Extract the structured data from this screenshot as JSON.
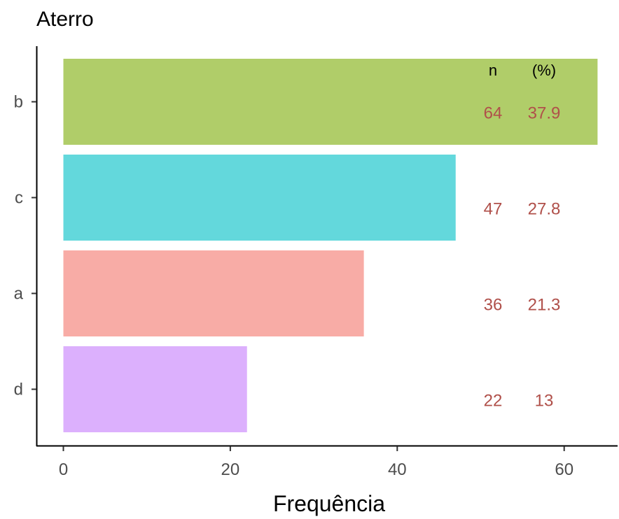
{
  "chart_data": {
    "type": "bar",
    "orientation": "horizontal",
    "title": "Aterro",
    "xlabel": "Frequência",
    "ylabel": "",
    "xlim": [
      0,
      66
    ],
    "x_ticks": [
      0,
      20,
      40,
      60
    ],
    "x_tick_labels": [
      "0",
      "20",
      "40",
      "60"
    ],
    "categories": [
      "b",
      "c",
      "a",
      "d"
    ],
    "values": [
      64,
      47,
      36,
      22
    ],
    "percents": [
      "37.9",
      "27.8",
      "21.3",
      "13"
    ],
    "colors": [
      "#b0cd69",
      "#63d8dc",
      "#f8aca6",
      "#dcb0fd"
    ],
    "column_headers": {
      "n": "n",
      "pct": "(%)"
    },
    "grid": false,
    "legend": "none"
  }
}
